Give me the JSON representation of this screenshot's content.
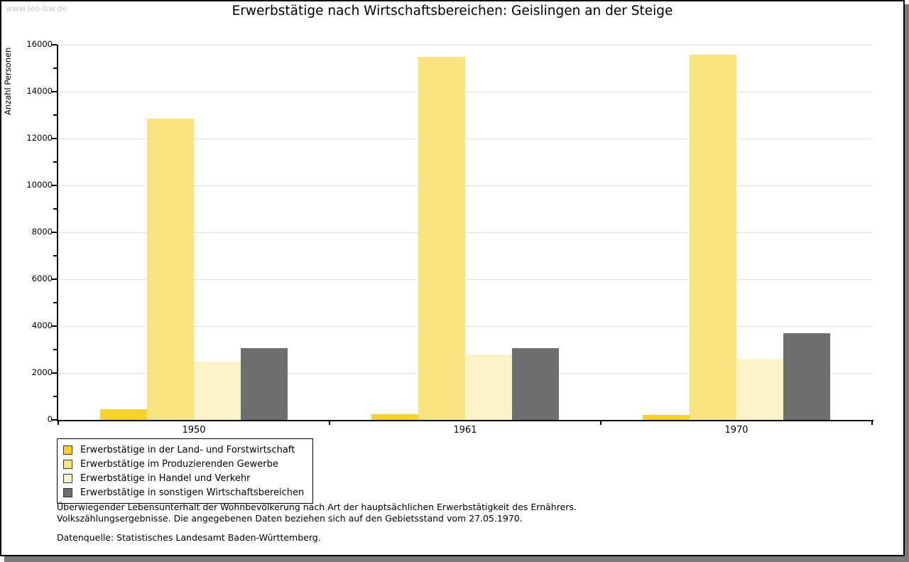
{
  "watermark": "www.leo-bw.de",
  "chart_data": {
    "type": "bar",
    "title": "Erwerbstätige nach Wirtschaftsbereichen: Geislingen an der Steige",
    "xlabel": "",
    "ylabel": "Anzahl Personen",
    "ylim": [
      0,
      16000
    ],
    "ytick_step": 2000,
    "ytick_minor_step": 1000,
    "grid": true,
    "legend_position": "bottom-left",
    "categories": [
      "1950",
      "1961",
      "1970"
    ],
    "series": [
      {
        "key": "land-forstwirtschaft",
        "name": "Erwerbstätige in der Land- und Forstwirtschaft",
        "color": "#f9d12e",
        "values": [
          440,
          250,
          200
        ]
      },
      {
        "key": "produzierendes-gewerbe",
        "name": "Erwerbstätige im Produzierenden Gewerbe",
        "color": "#fae480",
        "values": [
          12850,
          15500,
          15580
        ]
      },
      {
        "key": "handel-verkehr",
        "name": "Erwerbstätige in Handel und Verkehr",
        "color": "#fcf3c8",
        "values": [
          2480,
          2780,
          2620
        ]
      },
      {
        "key": "sonstige-wirtschaftsbereiche",
        "name": "Erwerbstätige in sonstigen Wirtschaftsbereichen",
        "color": "#6e6e6e",
        "values": [
          3050,
          3050,
          3700
        ]
      }
    ]
  },
  "footer": {
    "line1": "Überwiegender Lebensunterhalt der Wohnbevölkerung nach Art der hauptsächlichen Erwerbstätigkeit des Ernährers.",
    "line2": "Volkszählungsergebnisse. Die angegebenen Daten beziehen sich auf den Gebietsstand vom 27.05.1970.",
    "source": "Datenquelle: Statistisches Landesamt Baden-Württemberg."
  }
}
